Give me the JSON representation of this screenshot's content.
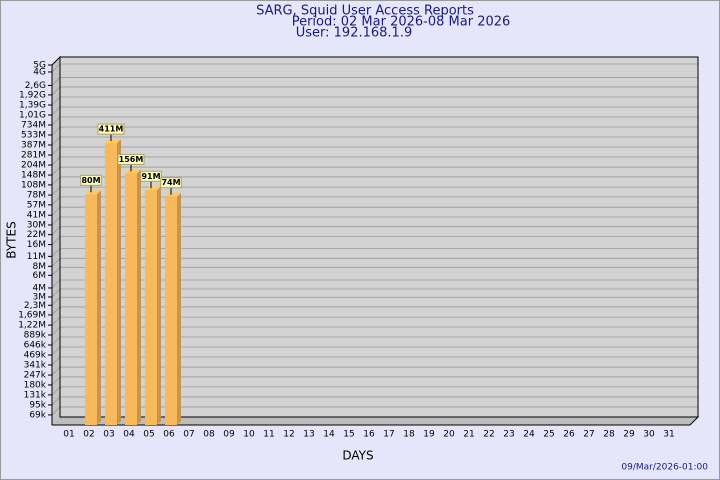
{
  "chart_data": {
    "type": "bar",
    "title": "SARG, Squid User Access Reports",
    "subtitles": [
      "Period: 02 Mar 2026-08 Mar 2026",
      "User: 192.168.1.9"
    ],
    "xlabel": "DAYS",
    "ylabel": "BYTES",
    "footer": "09/Mar/2026-01:00",
    "categories": [
      "01",
      "02",
      "03",
      "04",
      "05",
      "06",
      "07",
      "08",
      "09",
      "10",
      "11",
      "12",
      "13",
      "14",
      "15",
      "16",
      "17",
      "18",
      "19",
      "20",
      "21",
      "22",
      "23",
      "24",
      "25",
      "26",
      "27",
      "28",
      "29",
      "30",
      "31"
    ],
    "values": [
      null,
      80000000,
      411000000,
      156000000,
      91000000,
      74000000,
      null,
      null,
      null,
      null,
      null,
      null,
      null,
      null,
      null,
      null,
      null,
      null,
      null,
      null,
      null,
      null,
      null,
      null,
      null,
      null,
      null,
      null,
      null,
      null,
      null
    ],
    "value_labels": [
      null,
      "80M",
      "411M",
      "156M",
      "91M",
      "74M",
      null,
      null,
      null,
      null,
      null,
      null,
      null,
      null,
      null,
      null,
      null,
      null,
      null,
      null,
      null,
      null,
      null,
      null,
      null,
      null,
      null,
      null,
      null,
      null,
      null
    ],
    "color": "#f7b95c",
    "log_scale": true,
    "grid": true,
    "ylim": [
      50000,
      5000000000
    ],
    "yticks": [
      {
        "value": 69000,
        "label": "69k"
      },
      {
        "value": 95000,
        "label": "95k"
      },
      {
        "value": 131000,
        "label": "131k"
      },
      {
        "value": 180000,
        "label": "180k"
      },
      {
        "value": 247000,
        "label": "247k"
      },
      {
        "value": 341000,
        "label": "341k"
      },
      {
        "value": 469000,
        "label": "469k"
      },
      {
        "value": 646000,
        "label": "646k"
      },
      {
        "value": 889000,
        "label": "889k"
      },
      {
        "value": 1220000,
        "label": "1,22M"
      },
      {
        "value": 1690000,
        "label": "1,69M"
      },
      {
        "value": 2300000,
        "label": "2,3M"
      },
      {
        "value": 3000000,
        "label": "3M"
      },
      {
        "value": 4000000,
        "label": "4M"
      },
      {
        "value": 6000000,
        "label": "6M"
      },
      {
        "value": 8000000,
        "label": "8M"
      },
      {
        "value": 11000000,
        "label": "11M"
      },
      {
        "value": 16000000,
        "label": "16M"
      },
      {
        "value": 22000000,
        "label": "22M"
      },
      {
        "value": 30000000,
        "label": "30M"
      },
      {
        "value": 41000000,
        "label": "41M"
      },
      {
        "value": 57000000,
        "label": "57M"
      },
      {
        "value": 78000000,
        "label": "78M"
      },
      {
        "value": 108000000,
        "label": "108M"
      },
      {
        "value": 148000000,
        "label": "148M"
      },
      {
        "value": 204000000,
        "label": "204M"
      },
      {
        "value": 281000000,
        "label": "281M"
      },
      {
        "value": 387000000,
        "label": "387M"
      },
      {
        "value": 533000000,
        "label": "533M"
      },
      {
        "value": 734000000,
        "label": "734M"
      },
      {
        "value": 1010000000,
        "label": "1,01G"
      },
      {
        "value": 1390000000,
        "label": "1,39G"
      },
      {
        "value": 1920000000,
        "label": "1,92G"
      },
      {
        "value": 2600000000,
        "label": "2,6G"
      },
      {
        "value": 4000000000,
        "label": "4G"
      },
      {
        "value": 5000000000,
        "label": "5G"
      }
    ]
  }
}
